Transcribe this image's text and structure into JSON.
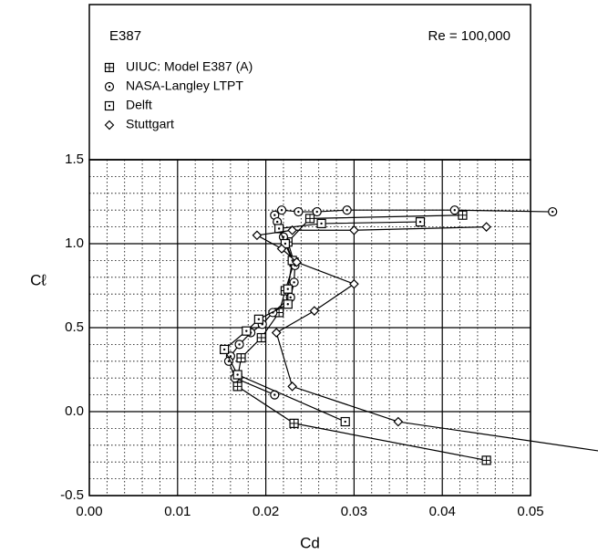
{
  "chart_data": {
    "type": "line",
    "title": "E387",
    "subtitle": "Re = 100,000",
    "xlabel": "Cd",
    "ylabel": "Cℓ",
    "xlim": [
      0,
      0.05
    ],
    "ylim": [
      -0.5,
      1.5
    ],
    "xticks": [
      {
        "value": 0,
        "label": "0.00"
      },
      {
        "value": 0.01,
        "label": "0.01"
      },
      {
        "value": 0.02,
        "label": "0.02"
      },
      {
        "value": 0.03,
        "label": "0.03"
      },
      {
        "value": 0.04,
        "label": "0.04"
      },
      {
        "value": 0.05,
        "label": "0.05"
      }
    ],
    "yticks": [
      -0.5,
      {
        "value": 0,
        "label": "0.0"
      },
      0.5,
      {
        "value": 1,
        "label": "1.0"
      },
      1.5
    ],
    "grid": true,
    "minor_grid": true,
    "series": [
      {
        "name": "UIUC:  Model E387 (A)",
        "color": "#000000",
        "marker": "boxplus",
        "x": [
          0.045,
          0.0232,
          0.0168,
          0.0168,
          0.0172,
          0.0195,
          0.0215,
          0.0222,
          0.0232,
          0.0225,
          0.025,
          0.0423
        ],
        "values": [
          -0.29,
          -0.07,
          0.15,
          0.2,
          0.32,
          0.44,
          0.59,
          0.72,
          0.89,
          1.01,
          1.15,
          1.17
        ]
      },
      {
        "name": "NASA-Langley LTPT",
        "color": "#000000",
        "marker": "circledot",
        "x": [
          0.0525,
          0.0414,
          0.0292,
          0.0258,
          0.0237,
          0.0218,
          0.021,
          0.0213,
          0.022,
          0.0233,
          0.0232,
          0.0228,
          0.0208,
          0.0196,
          0.0183,
          0.017,
          0.016,
          0.0158,
          0.0165,
          0.021
        ],
        "values": [
          1.19,
          1.2,
          1.2,
          1.19,
          1.19,
          1.2,
          1.17,
          1.13,
          1.04,
          0.87,
          0.77,
          0.68,
          0.59,
          0.52,
          0.47,
          0.4,
          0.33,
          0.3,
          0.2,
          0.1
        ]
      },
      {
        "name": "Delft",
        "color": "#000000",
        "marker": "boxdot",
        "x": [
          0.029,
          0.0168,
          0.0153,
          0.0178,
          0.0192,
          0.0225,
          0.0225,
          0.023,
          0.0222,
          0.0215,
          0.0263,
          0.0375
        ],
        "values": [
          -0.06,
          0.22,
          0.37,
          0.48,
          0.55,
          0.64,
          0.73,
          0.9,
          1.0,
          1.09,
          1.12,
          1.13
        ]
      },
      {
        "name": "Stuttgart",
        "color": "#000000",
        "marker": "diamond",
        "x": [
          0.0585,
          0.035,
          0.023,
          0.0212,
          0.0255,
          0.03,
          0.0235,
          0.0218,
          0.019,
          0.023,
          0.03,
          0.045
        ],
        "values": [
          -0.24,
          -0.06,
          0.15,
          0.47,
          0.6,
          0.76,
          0.89,
          0.97,
          1.05,
          1.08,
          1.08,
          1.1
        ]
      }
    ]
  }
}
